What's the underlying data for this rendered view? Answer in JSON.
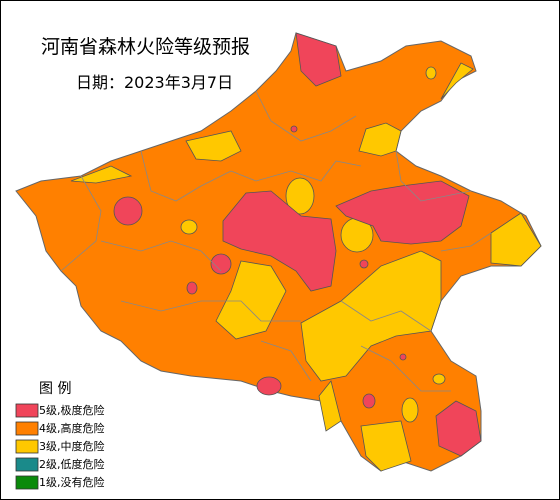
{
  "title": "河南省森林火险等级预报",
  "date": "日期：2023年3月7日",
  "legend": {
    "title": "图  例",
    "items": [
      {
        "label": "5级,极度危险",
        "color": "#f0455a"
      },
      {
        "label": "4级,高度危险",
        "color": "#ff8000"
      },
      {
        "label": "3级,中度危险",
        "color": "#ffc800"
      },
      {
        "label": "2级,低度危险",
        "color": "#1a8a8a"
      },
      {
        "label": "1级,没有危险",
        "color": "#0a8a0a"
      }
    ]
  }
}
